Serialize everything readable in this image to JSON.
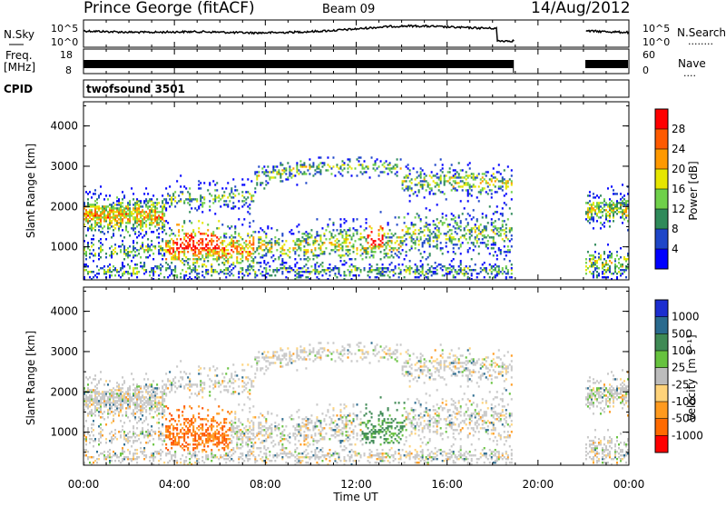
{
  "header": {
    "station": "Prince George (fitACF)",
    "beam": "Beam 09",
    "date": "14/Aug/2012"
  },
  "strips": {
    "nsky_label": "N.Sky",
    "nsearch_label": "N.Search",
    "nsearch_dots": "........",
    "noise_ticks_left": [
      "10^5",
      "10^0"
    ],
    "noise_ticks_right": [
      "10^5",
      "10^0"
    ],
    "freq_label_top": "Freq.",
    "freq_label_bottom": "[MHz]",
    "freq_ticks": [
      "18",
      "8"
    ],
    "nave_label": "Nave",
    "nave_dots": "....",
    "nave_ticks": [
      "60",
      "0"
    ],
    "cpid_label": "CPID",
    "cpid_value": "twofsound 3501"
  },
  "colors": {
    "power_scale": [
      "#0000ff",
      "#1e46c8",
      "#2f8a5a",
      "#6fd04a",
      "#e6e600",
      "#ff9900",
      "#ff5a00",
      "#ff0000"
    ],
    "velocity_scale": [
      "#1c2ed0",
      "#2a6a8e",
      "#3f8a55",
      "#66c23e",
      "#bcbcbc",
      "#ffd37a",
      "#ff9a1e",
      "#ff6a00",
      "#ff0000"
    ]
  },
  "chart_data": [
    {
      "type": "heatmap",
      "title": "",
      "xlabel": "Time UT",
      "ylabel": "Slant Range [km]",
      "xticks": [
        "00:00",
        "04:00",
        "08:00",
        "12:00",
        "16:00",
        "20:00",
        "00:00"
      ],
      "yticks": [
        "4000",
        "3000",
        "2000",
        "1000"
      ],
      "ylim": [
        180,
        4600
      ],
      "colorbar_label": "Power [dB]",
      "colorbar_ticks": [
        "28",
        "24",
        "20",
        "16",
        "12",
        "8",
        "4"
      ],
      "no_data_intervals_ut": [
        [
          "18:55",
          "22:05"
        ]
      ]
    },
    {
      "type": "heatmap",
      "title": "",
      "xlabel": "Time UT",
      "ylabel": "Slant Range [km]",
      "xticks": [
        "00:00",
        "04:00",
        "08:00",
        "12:00",
        "16:00",
        "20:00",
        "00:00"
      ],
      "yticks": [
        "4000",
        "3000",
        "2000",
        "1000"
      ],
      "ylim": [
        180,
        4600
      ],
      "colorbar_label": "Velocity",
      "colorbar_unit": "[m s⁻¹]",
      "colorbar_ticks": [
        "1000",
        "500",
        "100",
        "25",
        "-25",
        "-100",
        "-500",
        "-1000"
      ],
      "no_data_intervals_ut": [
        [
          "18:55",
          "22:05"
        ]
      ]
    }
  ]
}
